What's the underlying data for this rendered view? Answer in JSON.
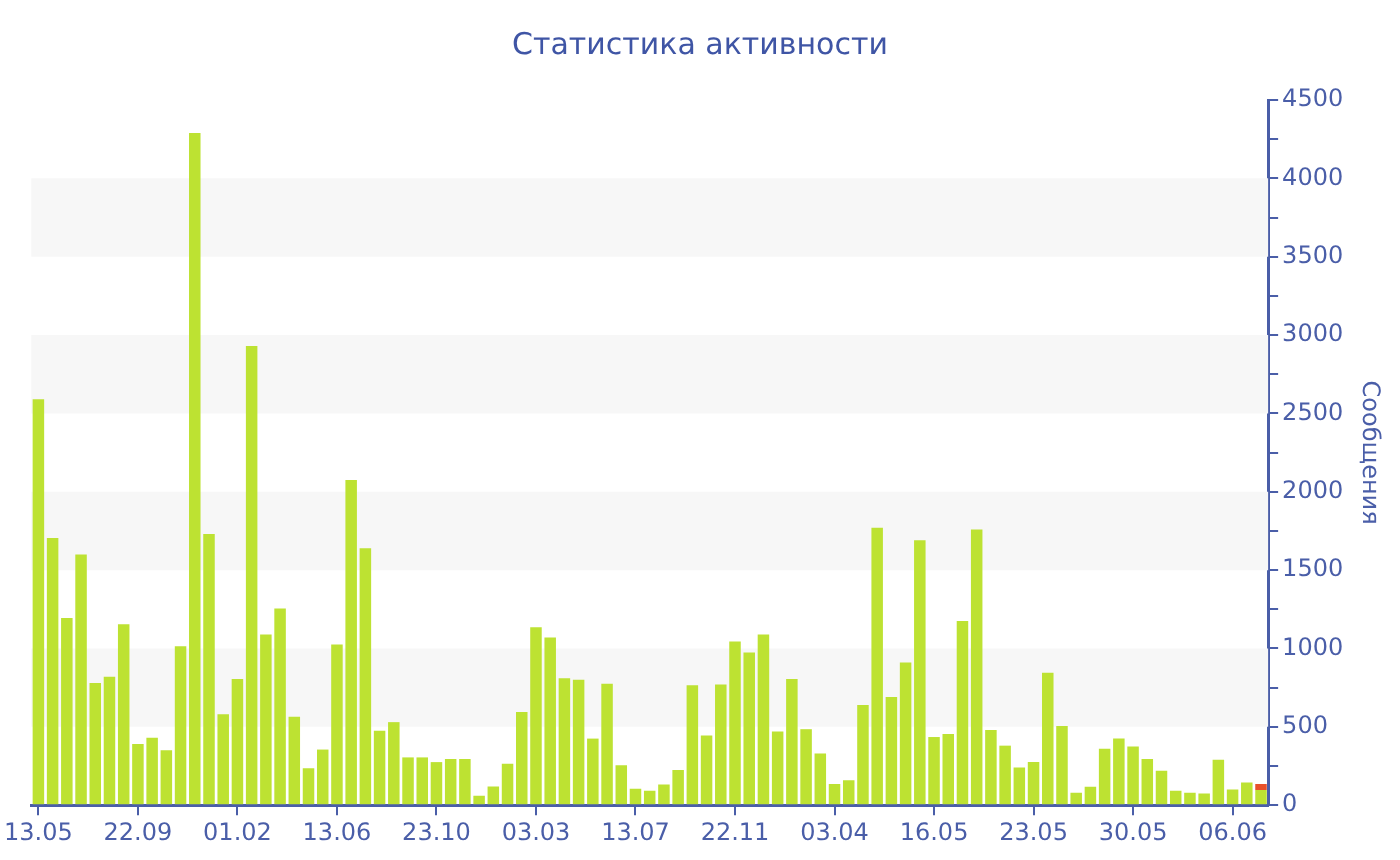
{
  "chart_data": {
    "type": "bar",
    "title": "Статистика активности",
    "ylabel": "Сообщения",
    "stacked": true,
    "categories": [
      "13.05",
      null,
      null,
      null,
      null,
      null,
      null,
      "22.09",
      null,
      null,
      null,
      null,
      null,
      null,
      "01.02",
      null,
      null,
      null,
      null,
      null,
      null,
      "13.06",
      null,
      null,
      null,
      null,
      null,
      null,
      "23.10",
      null,
      null,
      null,
      null,
      null,
      null,
      "03.03",
      null,
      null,
      null,
      null,
      null,
      null,
      "13.07",
      null,
      null,
      null,
      null,
      null,
      null,
      "22.11",
      null,
      null,
      null,
      null,
      null,
      null,
      "03.04",
      null,
      null,
      null,
      null,
      null,
      null,
      "16.05",
      null,
      null,
      null,
      null,
      null,
      null,
      "23.05",
      null,
      null,
      null,
      null,
      null,
      null,
      "30.05",
      null,
      null,
      null,
      null,
      null,
      null,
      "06.06",
      null,
      null
    ],
    "series": [
      {
        "color": "#bde232",
        "values": [
          2590,
          1705,
          1195,
          1600,
          780,
          820,
          1155,
          390,
          430,
          350,
          1015,
          4290,
          1730,
          580,
          805,
          2930,
          1090,
          1255,
          565,
          235,
          355,
          1025,
          2075,
          1640,
          475,
          530,
          305,
          305,
          275,
          295,
          295,
          60,
          120,
          265,
          595,
          1135,
          1070,
          810,
          800,
          425,
          775,
          255,
          105,
          92,
          132,
          225,
          765,
          445,
          770,
          1045,
          975,
          1090,
          470,
          805,
          485,
          330,
          135,
          160,
          640,
          1770,
          690,
          910,
          1690,
          435,
          455,
          1175,
          1760,
          480,
          380,
          240,
          275,
          845,
          505,
          80,
          118,
          360,
          425,
          375,
          295,
          220,
          92,
          80,
          75,
          290,
          100,
          145,
          97
        ]
      },
      {
        "color": "#e8502a",
        "values": [
          null,
          null,
          null,
          null,
          null,
          null,
          null,
          null,
          null,
          null,
          null,
          null,
          null,
          null,
          null,
          null,
          null,
          null,
          null,
          null,
          null,
          null,
          null,
          null,
          null,
          null,
          null,
          null,
          null,
          null,
          null,
          null,
          null,
          null,
          null,
          null,
          null,
          null,
          null,
          null,
          null,
          null,
          null,
          null,
          null,
          null,
          null,
          null,
          null,
          null,
          null,
          null,
          null,
          null,
          null,
          null,
          null,
          null,
          null,
          null,
          null,
          null,
          null,
          null,
          null,
          null,
          null,
          null,
          null,
          null,
          null,
          null,
          null,
          null,
          null,
          null,
          null,
          null,
          null,
          null,
          null,
          null,
          null,
          null,
          null,
          null,
          38
        ]
      }
    ],
    "ylim": [
      0,
      4500
    ],
    "yticks": [
      0,
      {
        "value": 250,
        "label": null
      },
      500,
      {
        "value": 750,
        "label": null
      },
      1000,
      {
        "value": 1250,
        "label": null
      },
      1500,
      {
        "value": 1750,
        "label": null
      },
      2000,
      {
        "value": 2250,
        "label": null
      },
      2500,
      {
        "value": 2750,
        "label": null
      },
      3000,
      {
        "value": 3250,
        "label": null
      },
      3500,
      {
        "value": 3750,
        "label": null
      },
      4000,
      {
        "value": 4250,
        "label": null
      },
      4500
    ],
    "bands": [
      {
        "axis": "y",
        "from": 500,
        "to": 1000,
        "color": "#f7f7f7"
      },
      {
        "axis": "y",
        "from": 1500,
        "to": 2000,
        "color": "#f7f7f7"
      },
      {
        "axis": "y",
        "from": 2500,
        "to": 3000,
        "color": "#f7f7f7"
      },
      {
        "axis": "y",
        "from": 3500,
        "to": 4000,
        "color": "#f7f7f7"
      }
    ],
    "grid": false,
    "legend": false
  }
}
